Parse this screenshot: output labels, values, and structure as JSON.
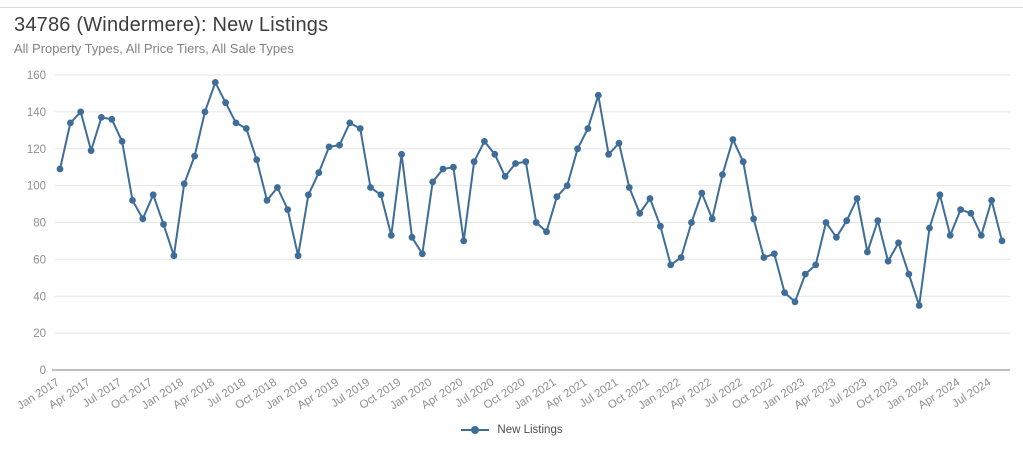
{
  "header": {
    "title": "34786 (Windermere): New Listings",
    "subtitle": "All Property Types, All Price Tiers, All Sale Types"
  },
  "legend": {
    "label": "New Listings"
  },
  "colors": {
    "line": "#3e6d99",
    "marker": "#3e6d99",
    "grid": "#e5e5e5",
    "axis_line": "#808080",
    "tick_text": "#8f8f8f",
    "title_text": "#3d3d3d",
    "subtitle_text": "#828282",
    "top_rule": "#d9d9d9"
  },
  "chart_data": {
    "type": "line",
    "title": "34786 (Windermere): New Listings",
    "subtitle": "All Property Types, All Price Tiers, All Sale Types",
    "xlabel": "",
    "ylabel": "",
    "ylim": [
      0,
      160
    ],
    "y_ticks": [
      0,
      20,
      40,
      60,
      80,
      100,
      120,
      140,
      160
    ],
    "grid": "horizontal",
    "legend_position": "bottom-center",
    "marker": "circle",
    "x_tick_interval": 3,
    "x_tick_labels": [
      "Jan 2017",
      "Apr 2017",
      "Jul 2017",
      "Oct 2017",
      "Jan 2018",
      "Apr 2018",
      "Jul 2018",
      "Oct 2018",
      "Jan 2019",
      "Apr 2019",
      "Jul 2019",
      "Oct 2019",
      "Jan 2020",
      "Apr 2020",
      "Jul 2020",
      "Oct 2020",
      "Jan 2021",
      "Apr 2021",
      "Jul 2021",
      "Oct 2021",
      "Jan 2022",
      "Apr 2022",
      "Jul 2022",
      "Oct 2022",
      "Jan 2023",
      "Apr 2023",
      "Jul 2023",
      "Oct 2023",
      "Jan 2024",
      "Apr 2024",
      "Jul 2024"
    ],
    "x": [
      "Jan 2017",
      "Feb 2017",
      "Mar 2017",
      "Apr 2017",
      "May 2017",
      "Jun 2017",
      "Jul 2017",
      "Aug 2017",
      "Sep 2017",
      "Oct 2017",
      "Nov 2017",
      "Dec 2017",
      "Jan 2018",
      "Feb 2018",
      "Mar 2018",
      "Apr 2018",
      "May 2018",
      "Jun 2018",
      "Jul 2018",
      "Aug 2018",
      "Sep 2018",
      "Oct 2018",
      "Nov 2018",
      "Dec 2018",
      "Jan 2019",
      "Feb 2019",
      "Mar 2019",
      "Apr 2019",
      "May 2019",
      "Jun 2019",
      "Jul 2019",
      "Aug 2019",
      "Sep 2019",
      "Oct 2019",
      "Nov 2019",
      "Dec 2019",
      "Jan 2020",
      "Feb 2020",
      "Mar 2020",
      "Apr 2020",
      "May 2020",
      "Jun 2020",
      "Jul 2020",
      "Aug 2020",
      "Sep 2020",
      "Oct 2020",
      "Nov 2020",
      "Dec 2020",
      "Jan 2021",
      "Feb 2021",
      "Mar 2021",
      "Apr 2021",
      "May 2021",
      "Jun 2021",
      "Jul 2021",
      "Aug 2021",
      "Sep 2021",
      "Oct 2021",
      "Nov 2021",
      "Dec 2021",
      "Jan 2022",
      "Feb 2022",
      "Mar 2022",
      "Apr 2022",
      "May 2022",
      "Jun 2022",
      "Jul 2022",
      "Aug 2022",
      "Sep 2022",
      "Oct 2022",
      "Nov 2022",
      "Dec 2022",
      "Jan 2023",
      "Feb 2023",
      "Mar 2023",
      "Apr 2023",
      "May 2023",
      "Jun 2023",
      "Jul 2023",
      "Aug 2023",
      "Sep 2023",
      "Oct 2023",
      "Nov 2023",
      "Dec 2023",
      "Jan 2024",
      "Feb 2024",
      "Mar 2024",
      "Apr 2024",
      "May 2024",
      "Jun 2024",
      "Jul 2024",
      "Aug 2024"
    ],
    "series": [
      {
        "name": "New Listings",
        "values": [
          109,
          134,
          140,
          119,
          137,
          136,
          124,
          92,
          82,
          95,
          79,
          62,
          101,
          116,
          140,
          156,
          145,
          134,
          131,
          114,
          92,
          99,
          87,
          62,
          95,
          107,
          121,
          122,
          134,
          131,
          99,
          95,
          73,
          117,
          72,
          63,
          102,
          109,
          110,
          70,
          113,
          124,
          117,
          105,
          112,
          113,
          80,
          75,
          94,
          100,
          120,
          131,
          149,
          117,
          123,
          99,
          85,
          93,
          78,
          57,
          61,
          80,
          96,
          82,
          106,
          125,
          113,
          82,
          61,
          63,
          42,
          37,
          52,
          57,
          80,
          72,
          81,
          93,
          64,
          81,
          59,
          69,
          52,
          35,
          77,
          95,
          73,
          87,
          85,
          73,
          92,
          70
        ]
      }
    ]
  }
}
